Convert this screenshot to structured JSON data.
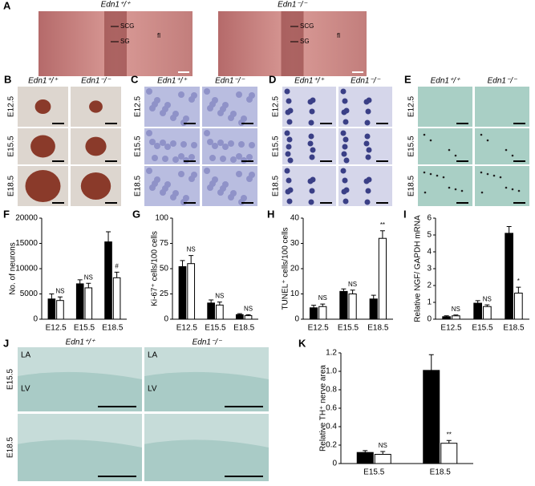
{
  "labels": {
    "panels": [
      "A",
      "B",
      "C",
      "D",
      "E",
      "F",
      "G",
      "H",
      "I",
      "J",
      "K"
    ],
    "genotypes": [
      "Edn1⁺/⁺",
      "Edn1⁻/⁻"
    ],
    "stages": [
      "E12.5",
      "E15.5",
      "E18.5"
    ],
    "a_marks": [
      "SCG",
      "SG",
      "fl"
    ],
    "j_marks": [
      "LA",
      "LV"
    ]
  },
  "chart_data": [
    {
      "type": "bar",
      "ylabel": "No. of neurons",
      "categories": [
        "E12.5",
        "E15.5",
        "E18.5"
      ],
      "series": [
        {
          "color": "#000000",
          "values": [
            4000,
            7000,
            15300
          ],
          "errors": [
            1000,
            800,
            2000
          ]
        },
        {
          "color": "#ffffff",
          "values": [
            3700,
            6200,
            8200
          ],
          "errors": [
            700,
            900,
            1100
          ]
        }
      ],
      "annotations": [
        "NS",
        "NS",
        "#"
      ],
      "ylim": [
        0,
        20000
      ],
      "yticks": [
        0,
        5000,
        10000,
        15000,
        20000
      ]
    },
    {
      "type": "bar",
      "ylabel": "Ki-67⁺ cells/100 cells",
      "categories": [
        "E12.5",
        "E15.5",
        "E18.5"
      ],
      "series": [
        {
          "color": "#000000",
          "values": [
            52,
            16,
            4.5
          ],
          "errors": [
            6,
            3,
            1
          ]
        },
        {
          "color": "#ffffff",
          "values": [
            55,
            14,
            3.5
          ],
          "errors": [
            8,
            3,
            1
          ]
        }
      ],
      "annotations": [
        "NS",
        "NS",
        "NS"
      ],
      "ylim": [
        0,
        100
      ],
      "yticks": [
        0,
        25,
        50,
        75,
        100
      ]
    },
    {
      "type": "bar",
      "ylabel": "TUNEL⁺ cells/100 cells",
      "categories": [
        "E12.5",
        "E15.5",
        "E18.5"
      ],
      "series": [
        {
          "color": "#000000",
          "values": [
            4.5,
            11,
            8
          ],
          "errors": [
            1,
            1,
            1.5
          ]
        },
        {
          "color": "#ffffff",
          "values": [
            5,
            10,
            32
          ],
          "errors": [
            1,
            1.5,
            3
          ]
        }
      ],
      "annotations": [
        "NS",
        "NS",
        "**"
      ],
      "ylim": [
        0,
        40
      ],
      "yticks": [
        0,
        10,
        20,
        30,
        40
      ]
    },
    {
      "type": "bar",
      "ylabel": "Relative NGF/ GAPDH mRNA",
      "categories": [
        "E12.5",
        "E15.5",
        "E18.5"
      ],
      "series": [
        {
          "color": "#000000",
          "values": [
            0.15,
            0.95,
            5.1
          ],
          "errors": [
            0.05,
            0.15,
            0.4
          ]
        },
        {
          "color": "#ffffff",
          "values": [
            0.2,
            0.75,
            1.55
          ],
          "errors": [
            0.05,
            0.1,
            0.35
          ]
        }
      ],
      "annotations": [
        "NS",
        "NS",
        "*"
      ],
      "ylim": [
        0,
        6
      ],
      "yticks": [
        0,
        1,
        2,
        3,
        4,
        5,
        6
      ]
    },
    {
      "type": "bar",
      "ylabel": "Relative TH⁺ nerve area",
      "categories": [
        "E15.5",
        "E18.5"
      ],
      "series": [
        {
          "color": "#000000",
          "values": [
            0.12,
            1.01
          ],
          "errors": [
            0.02,
            0.17
          ]
        },
        {
          "color": "#ffffff",
          "values": [
            0.1,
            0.22
          ],
          "errors": [
            0.03,
            0.03
          ]
        }
      ],
      "annotations": [
        "NS",
        "**"
      ],
      "ylim": [
        0,
        1.2
      ],
      "yticks": [
        0,
        0.2,
        0.4,
        0.6,
        0.8,
        {
          "value": 1,
          "label": "1.0"
        },
        1.2
      ]
    }
  ]
}
